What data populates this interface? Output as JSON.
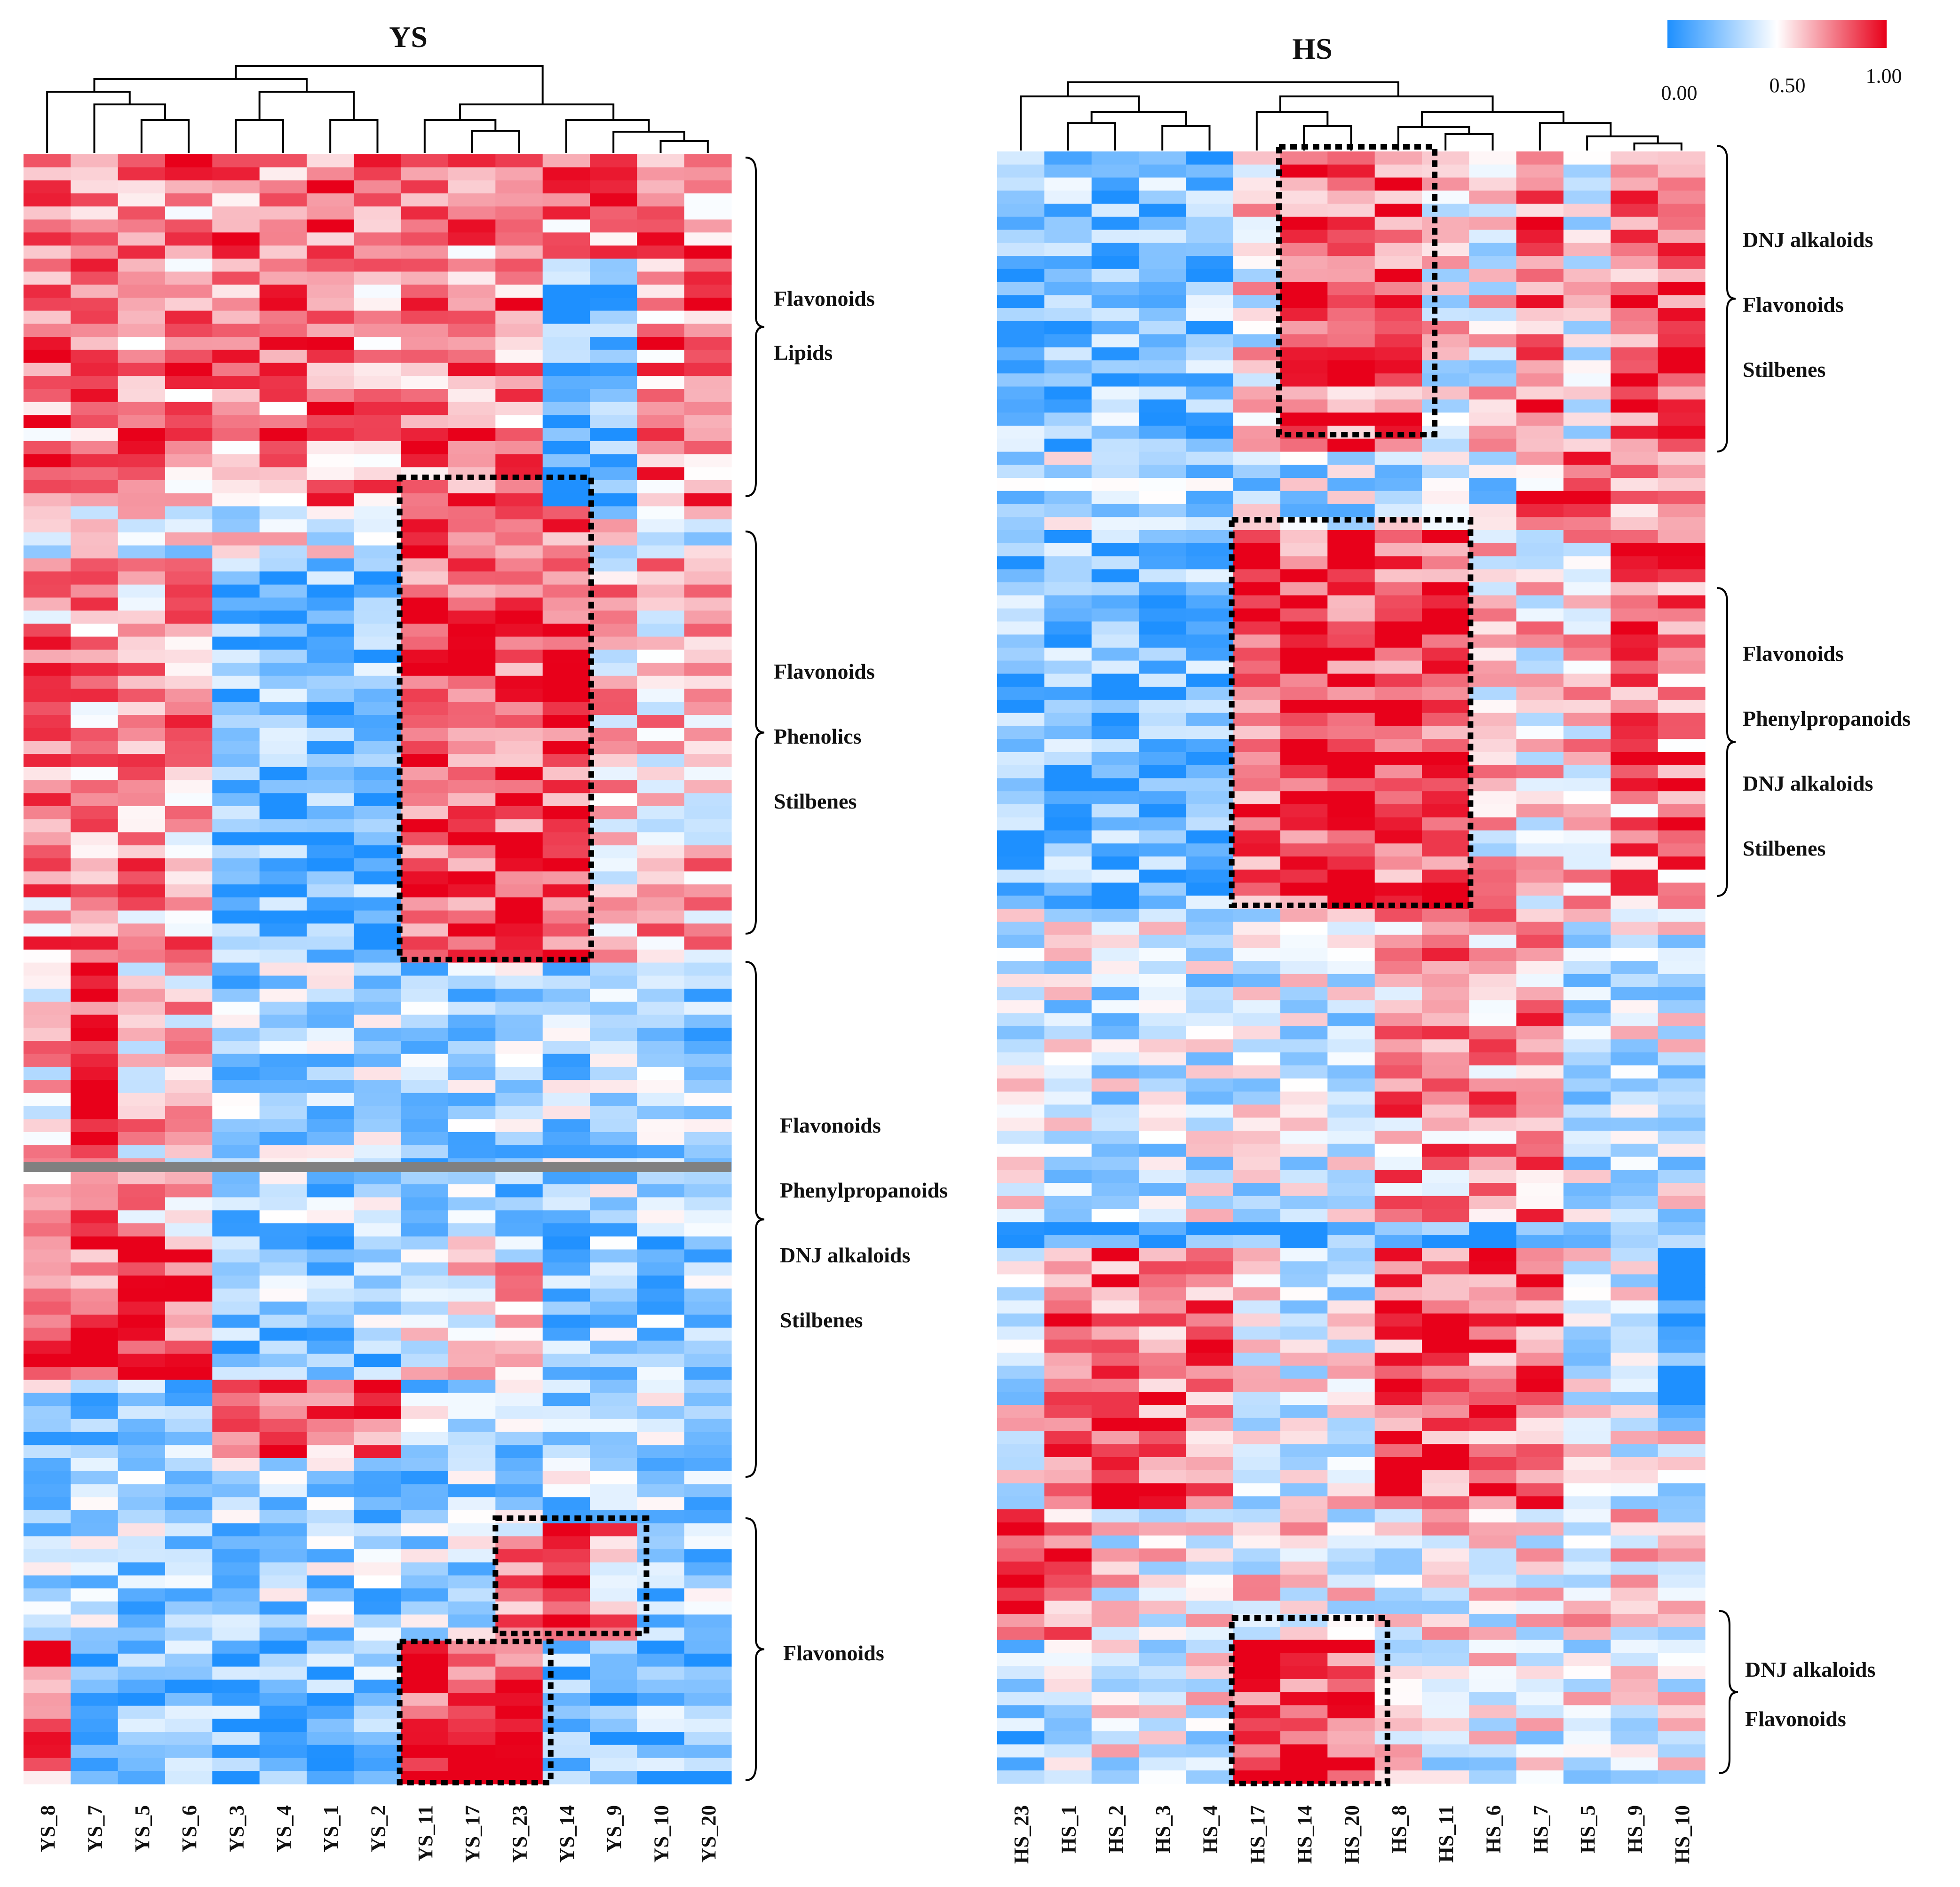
{
  "chart_data": [
    {
      "type": "heatmap",
      "title": "YS",
      "columns": [
        "YS_8",
        "YS_7",
        "YS_5",
        "YS_6",
        "YS_3",
        "YS_4",
        "YS_1",
        "YS_2",
        "YS_11",
        "YS_17",
        "YS_23",
        "YS_14",
        "YS_9",
        "YS_10",
        "YS_20"
      ],
      "row_count": 125,
      "groups": [
        {
          "labels": [
            "Flavonoids",
            "Lipids"
          ]
        },
        {
          "labels": [
            "Flavonoids",
            "Phenolics",
            "Stilbenes"
          ]
        },
        {
          "labels": [
            "Flavonoids",
            "Phenylpropanoids",
            "DNJ alkaloids",
            "Stilbenes"
          ]
        },
        {
          "labels": [
            "Flavonoids"
          ]
        }
      ],
      "value_range": [
        0,
        1
      ],
      "dendrogram": "columns"
    },
    {
      "type": "heatmap",
      "title": "HS",
      "columns": [
        "HS_23",
        "HS_1",
        "HS_2",
        "HS_3",
        "HS_4",
        "HS_17",
        "HS_14",
        "HS_20",
        "HS_8",
        "HS_11",
        "HS_6",
        "HS_7",
        "HS_5",
        "HS_9",
        "HS_10"
      ],
      "row_count": 125,
      "groups": [
        {
          "labels": [
            "DNJ alkaloids",
            "Flavonoids",
            "Stilbenes"
          ]
        },
        {
          "labels": [
            "Flavonoids",
            "Phenylpropanoids",
            "DNJ alkaloids",
            "Stilbenes"
          ]
        },
        {
          "labels": [
            "DNJ alkaloids",
            "Flavonoids"
          ]
        }
      ],
      "value_range": [
        0,
        1
      ],
      "dendrogram": "columns"
    }
  ],
  "colorbar": {
    "ticks": [
      "0.00",
      "0.50",
      "1.00"
    ],
    "colors": {
      "low": "#1e90ff",
      "mid": "#ffffff",
      "high": "#e8001a"
    }
  }
}
